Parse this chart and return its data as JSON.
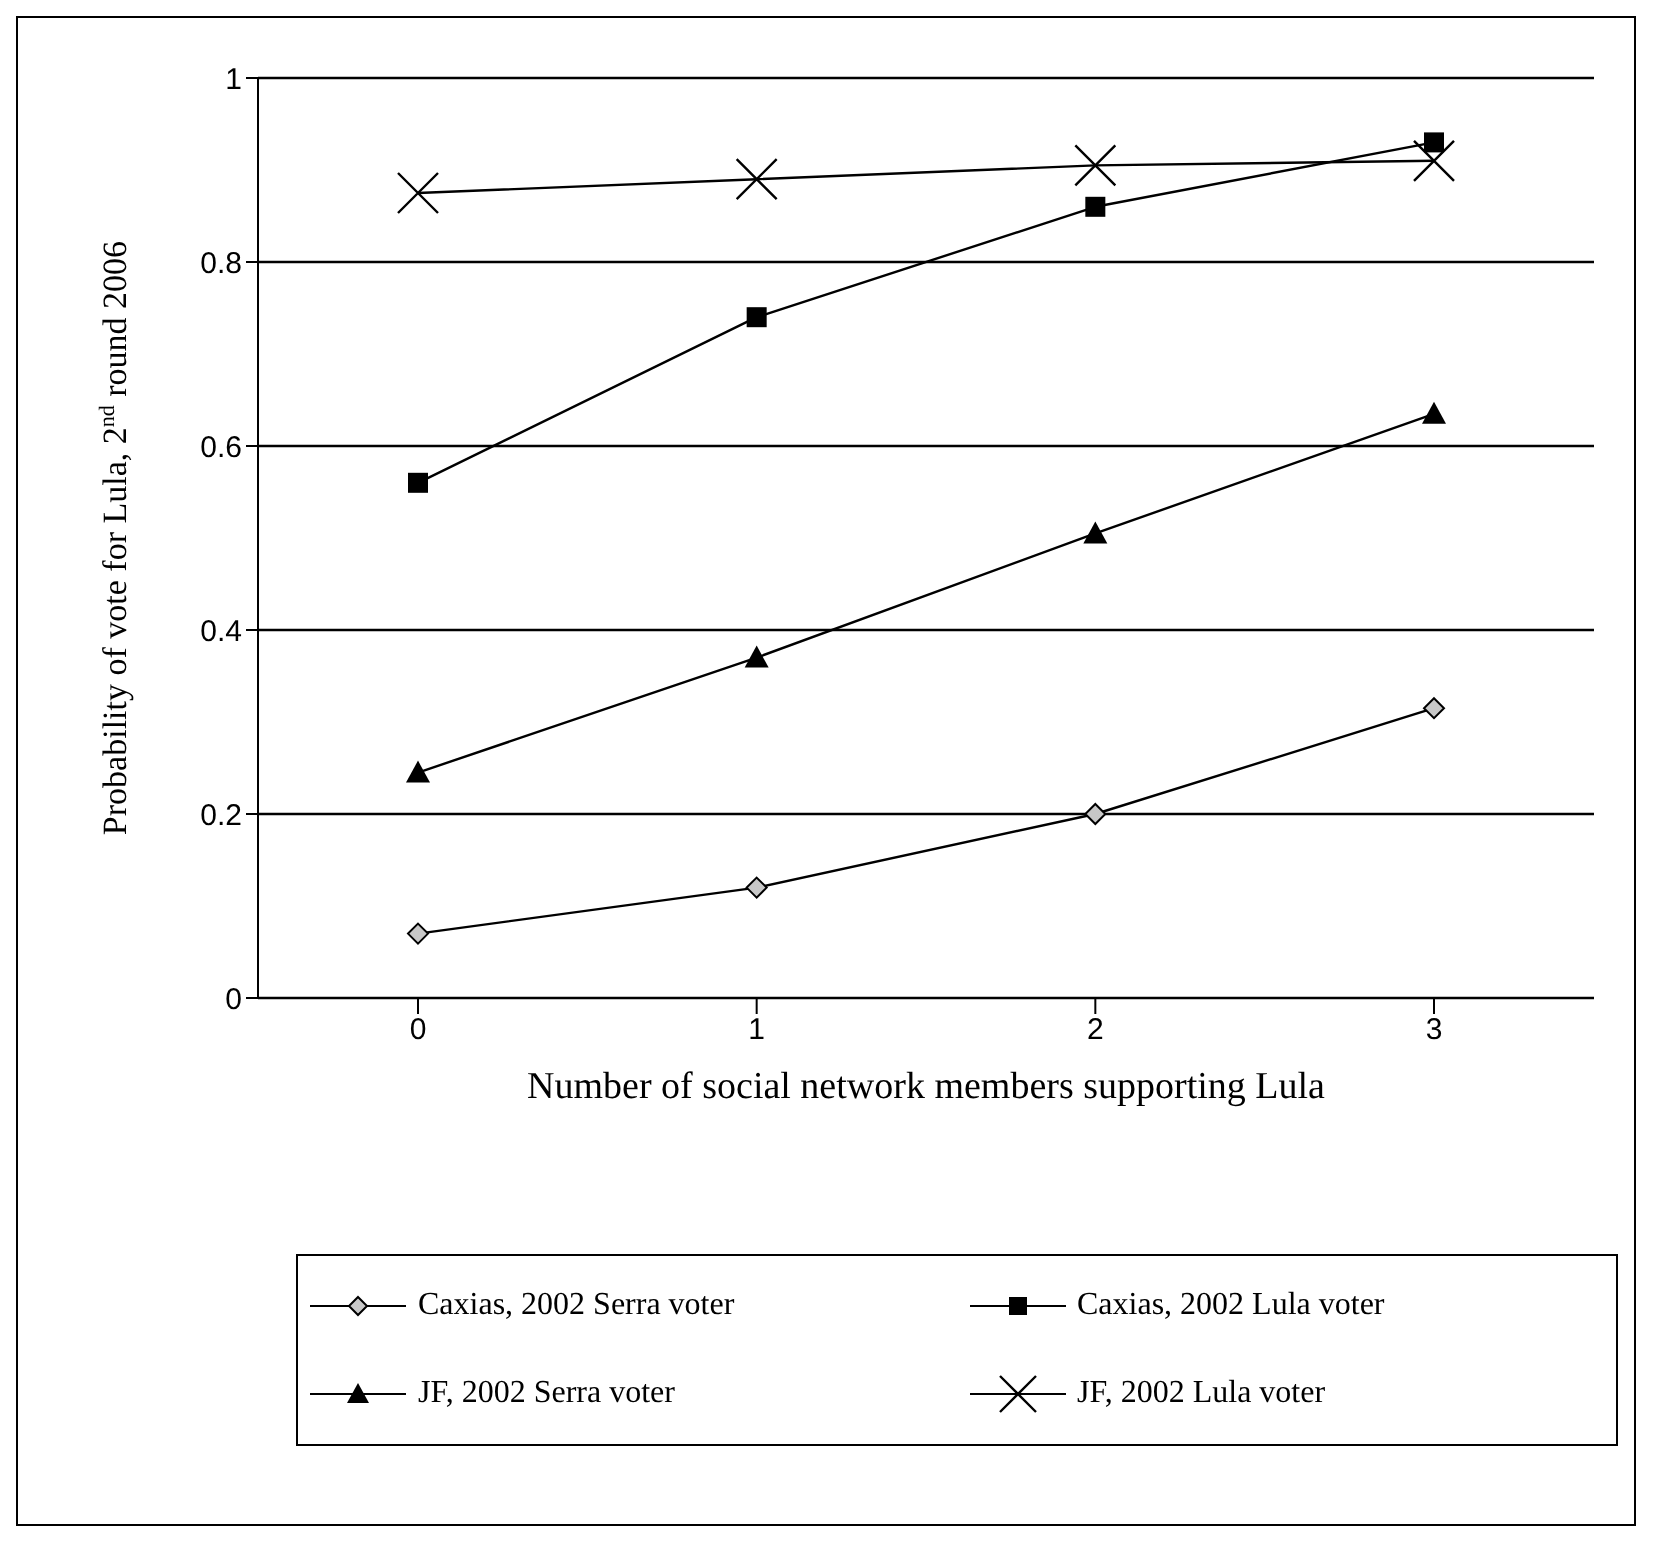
{
  "chart_data": {
    "type": "line",
    "xlabel": "Number of social network members supporting Lula",
    "ylabel": "Probability of vote for Lula, 2$^{nd}$ round 2006",
    "categories": [
      "0",
      "1",
      "2",
      "3"
    ],
    "series": [
      {
        "name": "Caxias, 2002 Serra voter",
        "color": "#000000",
        "marker": "diamond",
        "values": [
          0.07,
          0.12,
          0.2,
          0.315
        ]
      },
      {
        "name": "Caxias, 2002 Lula voter",
        "color": "#000000",
        "marker": "square",
        "values": [
          0.56,
          0.74,
          0.86,
          0.93
        ]
      },
      {
        "name": "JF, 2002 Serra voter",
        "color": "#000000",
        "marker": "triangle",
        "values": [
          0.245,
          0.37,
          0.505,
          0.635
        ]
      },
      {
        "name": "JF, 2002 Lula voter",
        "color": "#000000",
        "marker": "cross",
        "values": [
          0.875,
          0.89,
          0.905,
          0.91
        ]
      }
    ],
    "ylim": [
      0,
      1
    ],
    "yticks": [
      0,
      0.2,
      0.4,
      0.6,
      0.8,
      1
    ],
    "grid": "y",
    "legend": "bottom",
    "line_style": "solid"
  }
}
